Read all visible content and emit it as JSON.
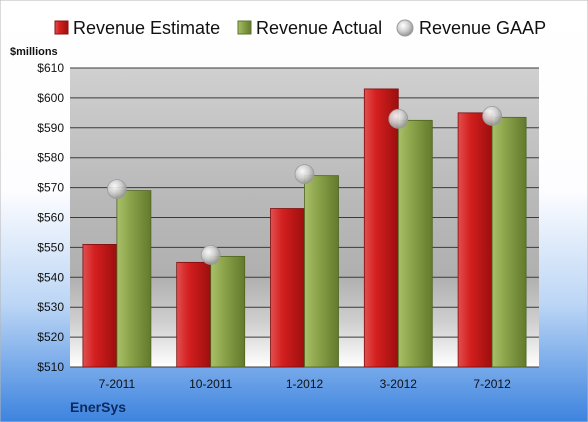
{
  "chart_data": {
    "type": "bar",
    "unit_label": "$millions",
    "company": "EnerSys",
    "categories": [
      "7-2011",
      "10-2011",
      "1-2012",
      "3-2012",
      "7-2012"
    ],
    "series": [
      {
        "name": "Revenue Estimate",
        "kind": "bar",
        "color": "#cc1a1a",
        "values": [
          551,
          545,
          563,
          603,
          595
        ]
      },
      {
        "name": "Revenue Actual",
        "kind": "bar",
        "color": "#8aa34a",
        "values": [
          569,
          547,
          574,
          592.5,
          593.5
        ]
      },
      {
        "name": "Revenue GAAP",
        "kind": "marker",
        "color": "#c0c0c0",
        "values": [
          569.5,
          547.5,
          574.5,
          593,
          594
        ]
      }
    ],
    "ylim": [
      510,
      610
    ],
    "yticks": [
      510,
      520,
      530,
      540,
      550,
      560,
      570,
      580,
      590,
      600,
      610
    ],
    "ytick_labels": [
      "$510",
      "$520",
      "$530",
      "$540",
      "$550",
      "$560",
      "$570",
      "$580",
      "$590",
      "$600",
      "$610"
    ],
    "grid": true,
    "legend": "top"
  }
}
